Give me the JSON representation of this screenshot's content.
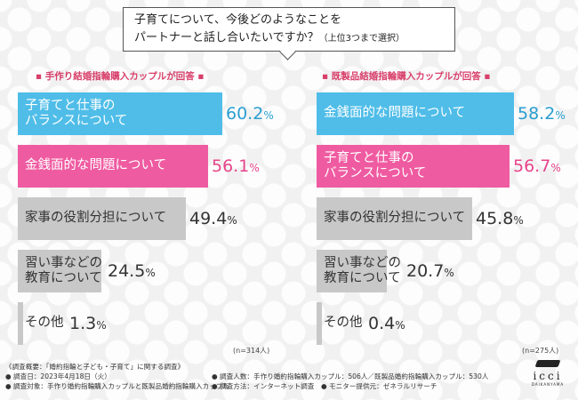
{
  "question": {
    "line1": "子育てについて、今後どのようなことを",
    "line2": "パートナーと話し合いたいですか？",
    "note": "（上位3つまで選択）"
  },
  "colors": {
    "top1": "#4fbde8",
    "top2": "#ef5ba1",
    "other": "#c8c8c8",
    "title": "#d83f6a"
  },
  "chart_data": [
    {
      "type": "bar",
      "title": "手作り結婚指輪購入カップルが回答",
      "n": "(n=314人)",
      "unit": "%",
      "categories": [
        [
          "子育てと仕事の",
          "バランスについて"
        ],
        [
          "金銭面的な問題について"
        ],
        [
          "家事の役割分担について"
        ],
        [
          "習い事などの",
          "教育について"
        ],
        [
          "その他"
        ]
      ],
      "values": [
        60.2,
        56.1,
        49.4,
        24.5,
        1.3
      ],
      "ranks": [
        1,
        2,
        0,
        0,
        0
      ]
    },
    {
      "type": "bar",
      "title": "既製品結婚指輪購入カップルが回答",
      "n": "(n=275人)",
      "unit": "%",
      "categories": [
        [
          "金銭面的な問題について"
        ],
        [
          "子育てと仕事の",
          "バランスについて"
        ],
        [
          "家事の役割分担について"
        ],
        [
          "習い事などの",
          "教育について"
        ],
        [
          "その他"
        ]
      ],
      "values": [
        58.2,
        56.7,
        45.8,
        20.7,
        0.4
      ],
      "ranks": [
        1,
        2,
        0,
        0,
        0
      ]
    }
  ],
  "footer": {
    "line1": "《調査概要：「婚約指輪と子ども・子育て」に関する調査》",
    "line2a": "● 調査日：2023年4月18日（火）",
    "line2b": "● 調査人数：手作り婚約指輪購入カップル：506人／既製品婚約指輪購入カップル：530人",
    "line3a": "● 調査対象：手作り婚約指輪購入カップルと既製品婚約指輪購入カップル",
    "line3b": "● 調査方法：インターネット調査　● モニター提供元：ゼネラルリサーチ"
  },
  "logo": {
    "name": "icci",
    "sub": "DAIKANYAMA"
  }
}
